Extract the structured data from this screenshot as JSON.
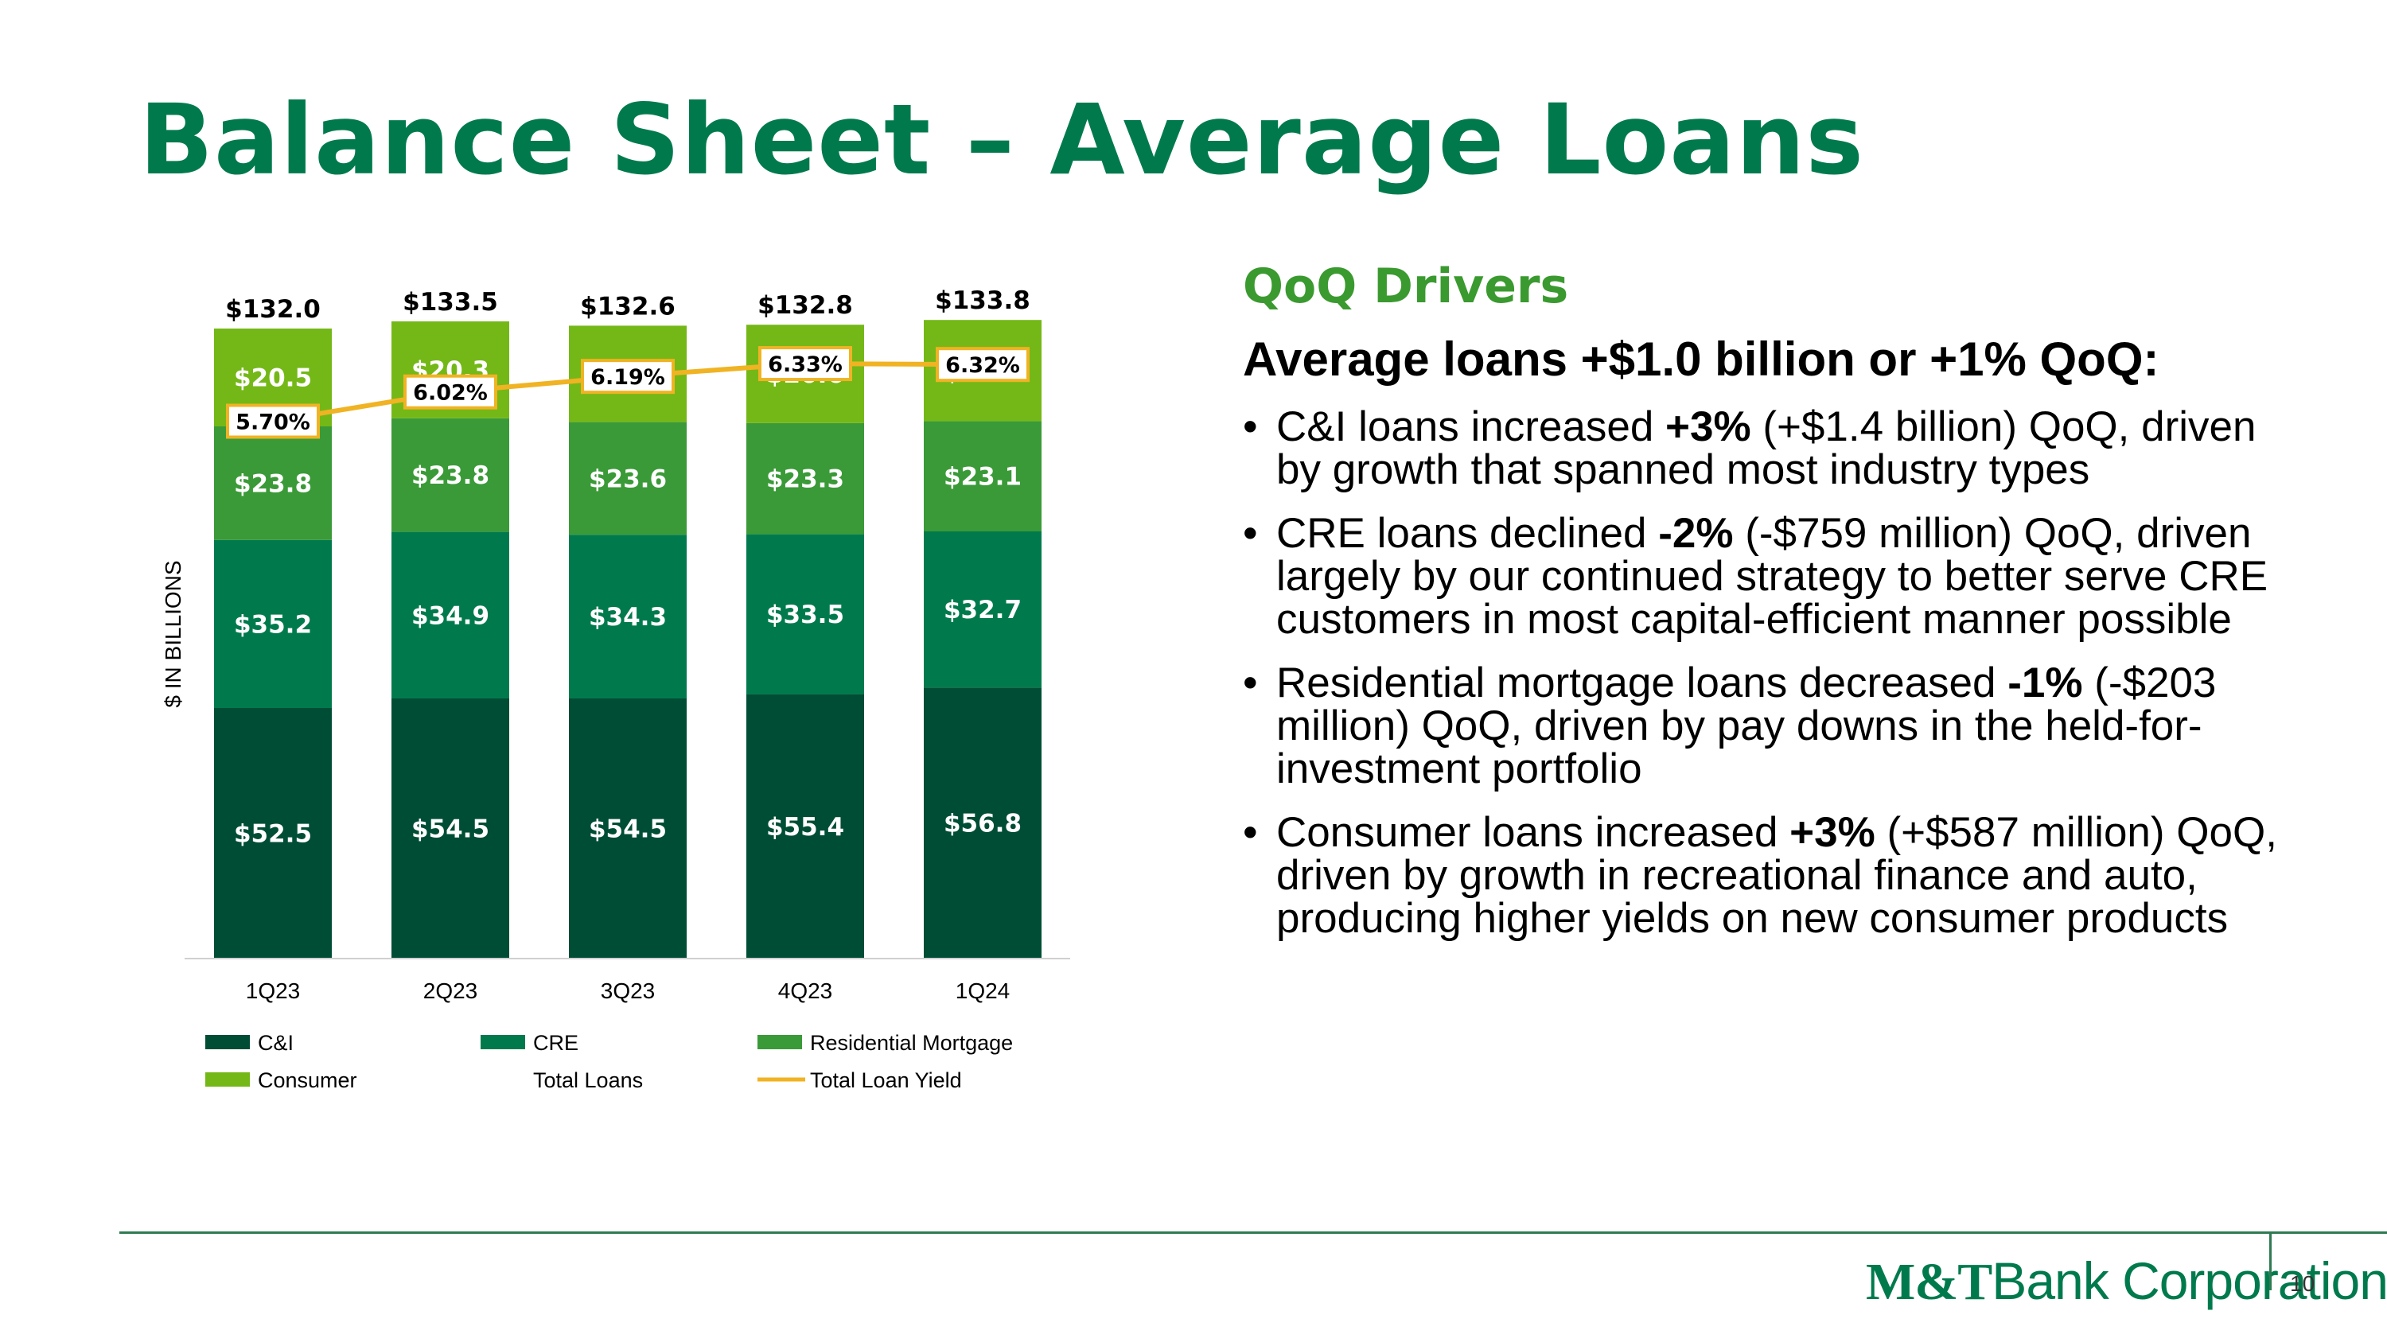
{
  "slide": {
    "title": "Balance Sheet – Average Loans",
    "page_number": "10"
  },
  "drivers": {
    "heading": "QoQ Drivers",
    "subheading": "Average loans +$1.0 billion or +1% QoQ:",
    "bullets": [
      {
        "pre": "C&I loans increased ",
        "bold": "+3%",
        "post": " (+$1.4 billion) QoQ, driven by growth that spanned most industry types"
      },
      {
        "pre": "CRE loans declined ",
        "bold": "-2%",
        "post": " (-$759 million) QoQ, driven largely by our continued strategy to better serve CRE customers in most capital-efficient manner possible"
      },
      {
        "pre": "Residential mortgage loans decreased ",
        "bold": "-1%",
        "post": " (-$203 million) QoQ, driven by pay downs in the held-for-investment portfolio"
      },
      {
        "pre": "Consumer loans increased ",
        "bold": "+3%",
        "post": " (+$587 million) QoQ, driven by growth in recreational finance and auto, producing higher yields on new consumer products"
      }
    ]
  },
  "logo": {
    "mark": "M&T",
    "text": "Bank Corporation"
  },
  "chart_data": {
    "type": "bar",
    "stacked": true,
    "ylabel": "$ IN BILLIONS",
    "categories": [
      "1Q23",
      "2Q23",
      "3Q23",
      "4Q23",
      "1Q24"
    ],
    "series": [
      {
        "name": "C&I",
        "values": [
          52.5,
          54.5,
          54.5,
          55.4,
          56.8
        ],
        "labels": [
          "$52.5",
          "$54.5",
          "$54.5",
          "$55.4",
          "$56.8"
        ],
        "color": "#004d35"
      },
      {
        "name": "CRE",
        "values": [
          35.2,
          34.9,
          34.3,
          33.5,
          32.7
        ],
        "labels": [
          "$35.2",
          "$34.9",
          "$34.3",
          "$33.5",
          "$32.7"
        ],
        "color": "#007a4d"
      },
      {
        "name": "Residential Mortgage",
        "values": [
          23.8,
          23.8,
          23.6,
          23.3,
          23.1
        ],
        "labels": [
          "$23.8",
          "$23.8",
          "$23.6",
          "$23.3",
          "$23.1"
        ],
        "color": "#3a9a38"
      },
      {
        "name": "Consumer",
        "values": [
          20.5,
          20.3,
          20.2,
          20.6,
          21.2
        ],
        "labels": [
          "$20.5",
          "$20.3",
          "$20.2",
          "$20.6",
          "$21.2"
        ],
        "color": "#74b817"
      }
    ],
    "totals": {
      "name": "Total Loans",
      "values": [
        132.0,
        133.5,
        132.6,
        132.8,
        133.8
      ],
      "labels": [
        "$132.0",
        "$133.5",
        "$132.6",
        "$132.8",
        "$133.8"
      ]
    },
    "line": {
      "name": "Total Loan Yield",
      "values": [
        5.7,
        6.02,
        6.19,
        6.33,
        6.32
      ],
      "labels": [
        "5.70%",
        "6.02%",
        "6.19%",
        "6.33%",
        "6.32%"
      ],
      "color": "#f0b323"
    },
    "legend": {
      "placement": "bottom",
      "entries": [
        "C&I",
        "CRE",
        "Residential Mortgage",
        "Consumer",
        "Total Loans",
        "Total Loan Yield"
      ]
    }
  }
}
